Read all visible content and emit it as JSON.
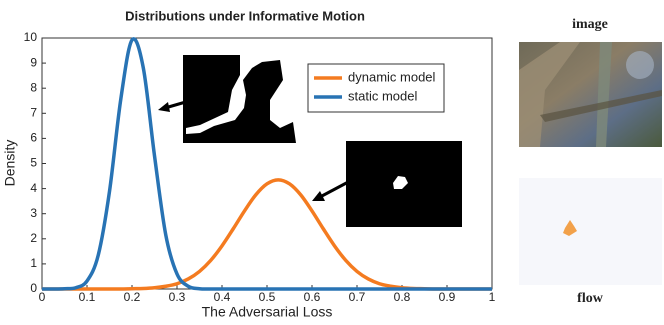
{
  "chart_data": {
    "type": "line",
    "title": "Distributions under Informative Motion",
    "xlabel": "The Adversarial Loss",
    "ylabel": "Density",
    "x": [
      0,
      0.025,
      0.05,
      0.075,
      0.1,
      0.125,
      0.15,
      0.175,
      0.2,
      0.225,
      0.25,
      0.275,
      0.3,
      0.325,
      0.35,
      0.375,
      0.4,
      0.425,
      0.45,
      0.475,
      0.5,
      0.525,
      0.55,
      0.575,
      0.6,
      0.625,
      0.65,
      0.675,
      0.7,
      0.725,
      0.75,
      0.775,
      0.8,
      0.825,
      0.85,
      0.875,
      0.9,
      0.925,
      0.95,
      0.975,
      1
    ],
    "series": [
      {
        "name": "dynamic model",
        "color": "#f47b20",
        "values": [
          0,
          0,
          0,
          0,
          0,
          0,
          0,
          0,
          0.01,
          0.02,
          0.05,
          0.11,
          0.21,
          0.4,
          0.7,
          1.14,
          1.72,
          2.4,
          3.11,
          3.75,
          4.19,
          4.35,
          4.19,
          3.75,
          3.11,
          2.4,
          1.72,
          1.14,
          0.7,
          0.4,
          0.21,
          0.11,
          0.05,
          0.02,
          0.01,
          0,
          0,
          0,
          0,
          0,
          0
        ]
      },
      {
        "name": "static model",
        "color": "#2873b4",
        "values": [
          0,
          0,
          0.01,
          0.05,
          0.32,
          1.35,
          3.89,
          7.55,
          9.92,
          8.82,
          5.31,
          2.16,
          0.6,
          0.11,
          0.01,
          0,
          0,
          0,
          0,
          0,
          0,
          0,
          0,
          0,
          0,
          0,
          0,
          0,
          0,
          0,
          0,
          0,
          0,
          0,
          0,
          0,
          0,
          0,
          0,
          0,
          0
        ]
      }
    ],
    "xlim": [
      0,
      1
    ],
    "xticks": [
      0,
      0.1,
      0.2,
      0.3,
      0.4,
      0.5,
      0.6,
      0.7,
      0.8,
      0.9,
      1
    ],
    "ylim": [
      0,
      10
    ],
    "yticks": [
      0,
      1,
      2,
      3,
      4,
      5,
      6,
      7,
      8,
      9,
      10
    ],
    "grid": false,
    "legend": "upper right"
  },
  "panels": {
    "image_label": "image",
    "flow_label": "flow"
  }
}
